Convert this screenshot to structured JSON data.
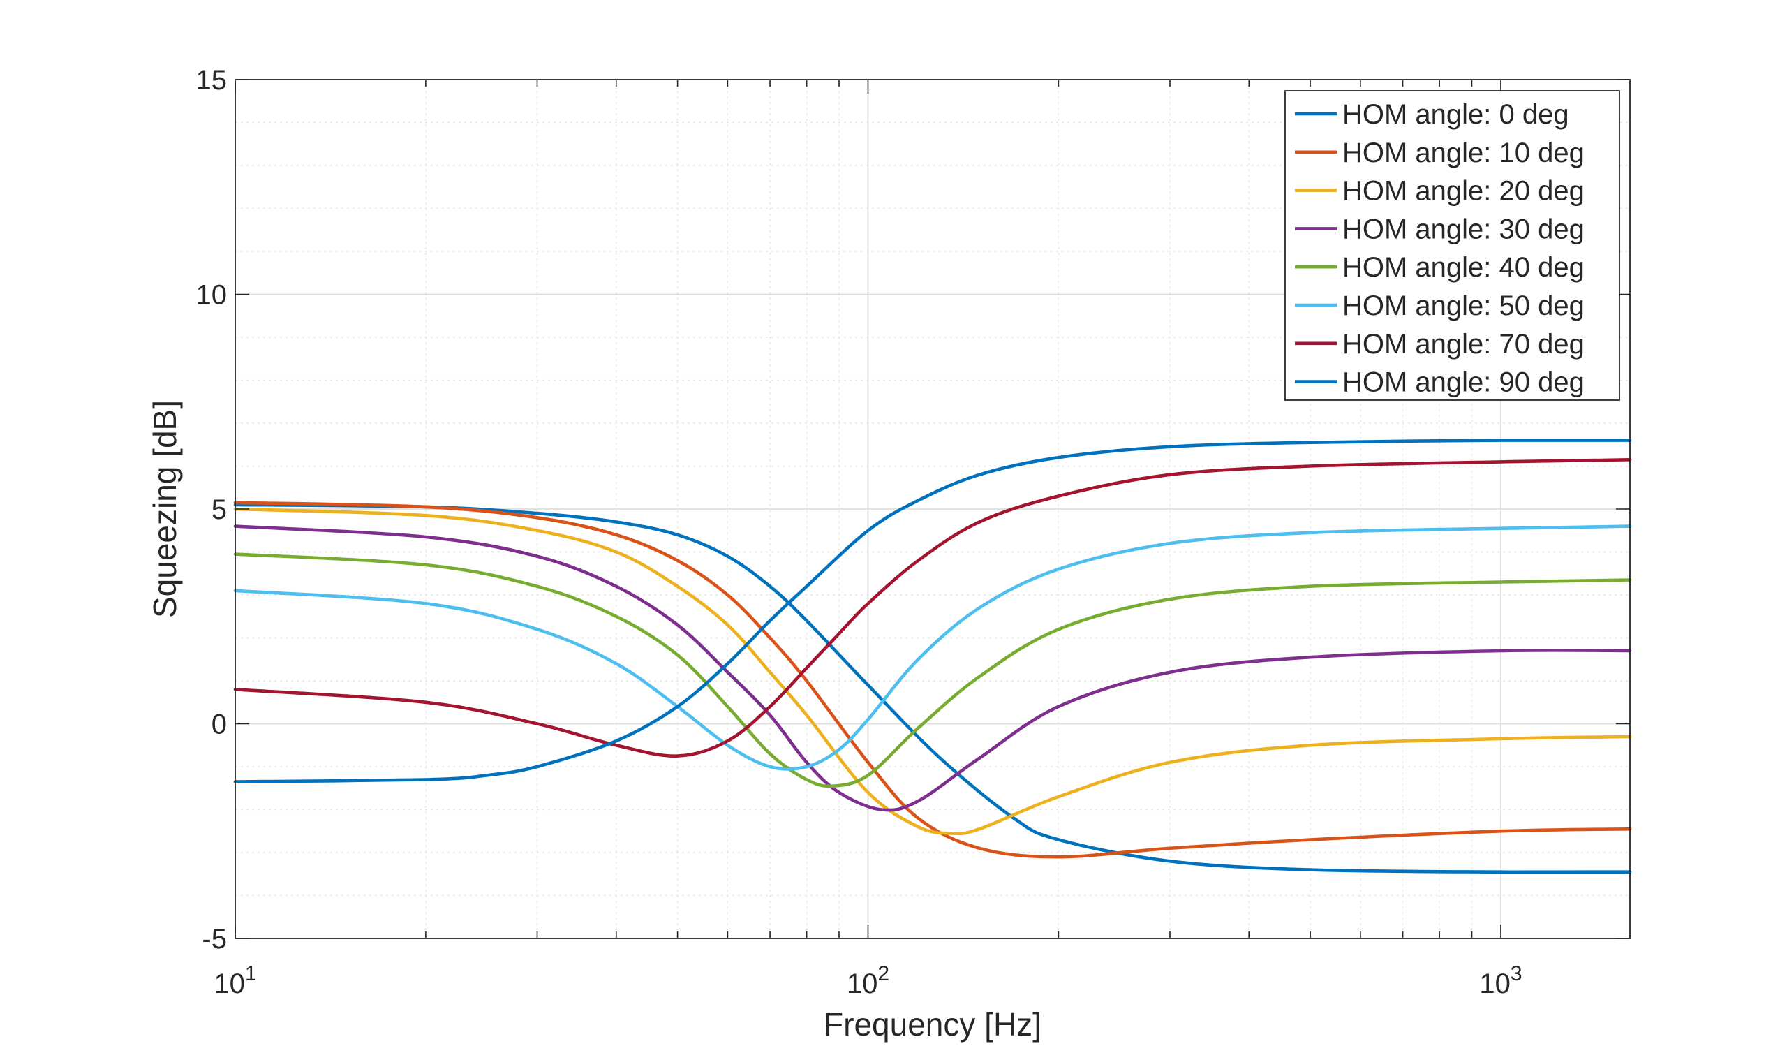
{
  "chart_data": {
    "type": "line",
    "title": "",
    "xlabel": "Frequency [Hz]",
    "ylabel": "Squeezing [dB]",
    "xscale": "log",
    "xlim": [
      10,
      1600
    ],
    "ylim": [
      -5,
      15
    ],
    "grid": true,
    "minor_grid": true,
    "legend_position": "top-right",
    "x_ticks": [
      {
        "value": 10,
        "base": "10",
        "exp": "1"
      },
      {
        "value": 100,
        "base": "10",
        "exp": "2"
      },
      {
        "value": 1000,
        "base": "10",
        "exp": "3"
      }
    ],
    "y_ticks": [
      {
        "value": -5,
        "label": "-5"
      },
      {
        "value": 0,
        "label": "0"
      },
      {
        "value": 5,
        "label": "5"
      },
      {
        "value": 10,
        "label": "10"
      },
      {
        "value": 15,
        "label": "15"
      }
    ],
    "series": [
      {
        "name": "HOM angle: 0 deg",
        "color": "#0072BD",
        "x": [
          10,
          20,
          30,
          40,
          50,
          60,
          70,
          80,
          100,
          130,
          170,
          200,
          300,
          500,
          1000,
          1600
        ],
        "y": [
          5.1,
          5.05,
          4.9,
          4.7,
          4.4,
          3.9,
          3.2,
          2.4,
          0.9,
          -0.8,
          -2.2,
          -2.7,
          -3.2,
          -3.4,
          -3.45,
          -3.45
        ]
      },
      {
        "name": "HOM angle: 10 deg",
        "color": "#D95319",
        "x": [
          10,
          20,
          30,
          40,
          50,
          60,
          70,
          80,
          100,
          120,
          150,
          200,
          300,
          500,
          1000,
          1600
        ],
        "y": [
          5.15,
          5.05,
          4.8,
          4.4,
          3.8,
          3.0,
          2.0,
          1.0,
          -0.9,
          -2.2,
          -2.9,
          -3.1,
          -2.9,
          -2.7,
          -2.5,
          -2.45
        ]
      },
      {
        "name": "HOM angle: 20 deg",
        "color": "#EDB120",
        "x": [
          10,
          20,
          30,
          40,
          50,
          60,
          70,
          80,
          100,
          120,
          135,
          150,
          200,
          300,
          500,
          1000,
          1600
        ],
        "y": [
          5.0,
          4.85,
          4.5,
          4.0,
          3.2,
          2.3,
          1.2,
          0.2,
          -1.6,
          -2.4,
          -2.55,
          -2.45,
          -1.7,
          -0.9,
          -0.5,
          -0.35,
          -0.3
        ]
      },
      {
        "name": "HOM angle: 30 deg",
        "color": "#7E2F8E",
        "x": [
          10,
          20,
          30,
          40,
          50,
          60,
          70,
          80,
          90,
          105,
          120,
          150,
          200,
          300,
          500,
          1000,
          1600
        ],
        "y": [
          4.6,
          4.35,
          3.9,
          3.2,
          2.3,
          1.2,
          0.2,
          -0.9,
          -1.6,
          -2.0,
          -1.8,
          -0.8,
          0.4,
          1.2,
          1.55,
          1.7,
          1.7
        ]
      },
      {
        "name": "HOM angle: 40 deg",
        "color": "#77AC30",
        "x": [
          10,
          20,
          30,
          40,
          50,
          60,
          70,
          80,
          88,
          100,
          120,
          150,
          200,
          300,
          500,
          1000,
          1600
        ],
        "y": [
          3.95,
          3.7,
          3.2,
          2.5,
          1.6,
          0.4,
          -0.7,
          -1.3,
          -1.45,
          -1.2,
          -0.1,
          1.1,
          2.2,
          2.9,
          3.2,
          3.3,
          3.35
        ]
      },
      {
        "name": "HOM angle: 50 deg",
        "color": "#4DBEEE",
        "x": [
          10,
          20,
          30,
          40,
          50,
          60,
          70,
          80,
          90,
          100,
          120,
          150,
          200,
          300,
          500,
          1000,
          1600
        ],
        "y": [
          3.1,
          2.8,
          2.2,
          1.4,
          0.4,
          -0.5,
          -1.0,
          -1.0,
          -0.6,
          0.1,
          1.5,
          2.7,
          3.6,
          4.2,
          4.45,
          4.55,
          4.6
        ]
      },
      {
        "name": "HOM angle: 70 deg",
        "color": "#A2142F",
        "x": [
          10,
          20,
          30,
          40,
          50,
          60,
          70,
          80,
          90,
          100,
          120,
          150,
          200,
          300,
          500,
          1000,
          1600
        ],
        "y": [
          0.8,
          0.5,
          0.0,
          -0.5,
          -0.75,
          -0.4,
          0.4,
          1.3,
          2.1,
          2.8,
          3.8,
          4.7,
          5.3,
          5.8,
          6.0,
          6.1,
          6.15
        ]
      },
      {
        "name": "HOM angle: 90 deg",
        "color": "#0072BD",
        "x": [
          10,
          20,
          25,
          30,
          40,
          50,
          60,
          70,
          80,
          100,
          120,
          150,
          200,
          300,
          500,
          1000,
          1600
        ],
        "y": [
          -1.35,
          -1.3,
          -1.2,
          -1.0,
          -0.4,
          0.4,
          1.4,
          2.4,
          3.2,
          4.5,
          5.2,
          5.8,
          6.2,
          6.45,
          6.55,
          6.6,
          6.6
        ]
      }
    ]
  }
}
